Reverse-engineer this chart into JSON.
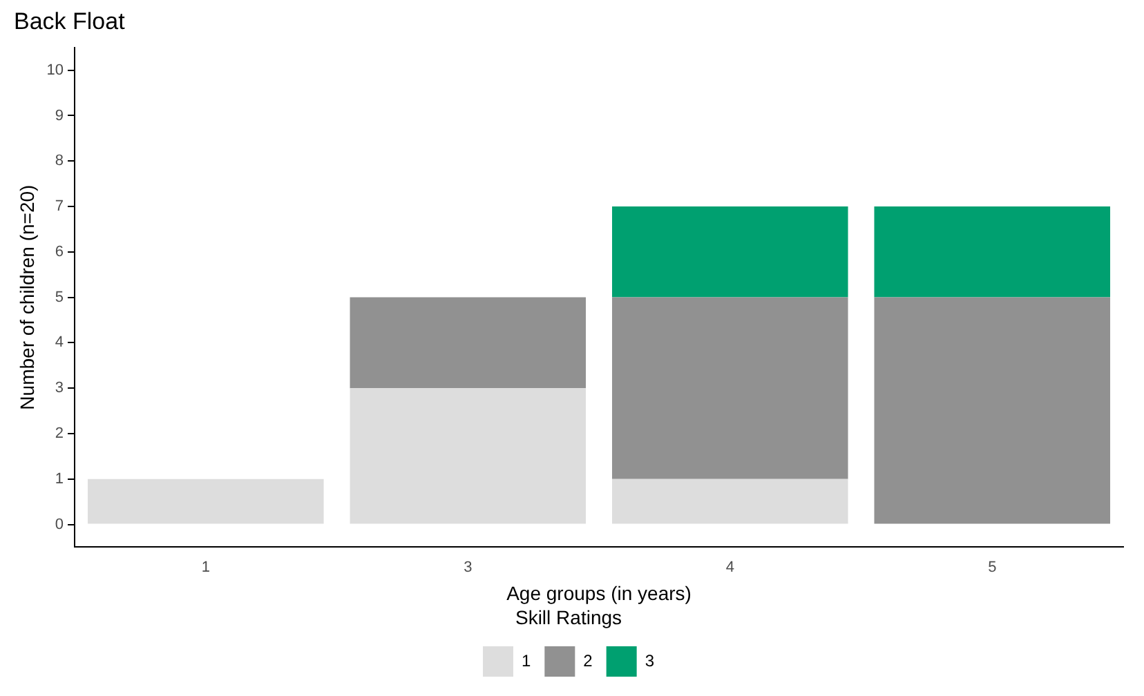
{
  "chart_data": {
    "type": "bar",
    "title": "Back Float",
    "xlabel": "Age groups (in years)",
    "ylabel": "Number of children (n=20)",
    "legend_title": "Skill Ratings",
    "categories": [
      "1",
      "3",
      "4",
      "5"
    ],
    "stacked": true,
    "series": [
      {
        "name": "1",
        "color": "#dddddd",
        "values": [
          1,
          3,
          1,
          0
        ]
      },
      {
        "name": "2",
        "color": "#919191",
        "values": [
          0,
          2,
          4,
          5
        ]
      },
      {
        "name": "3",
        "color": "#00a070",
        "values": [
          0,
          0,
          2,
          2
        ]
      }
    ],
    "ylim": [
      -0.5,
      10.5
    ],
    "yticks": [
      0,
      1,
      2,
      3,
      4,
      5,
      6,
      7,
      8,
      9,
      10
    ],
    "grid": false,
    "legend": "bottom"
  }
}
